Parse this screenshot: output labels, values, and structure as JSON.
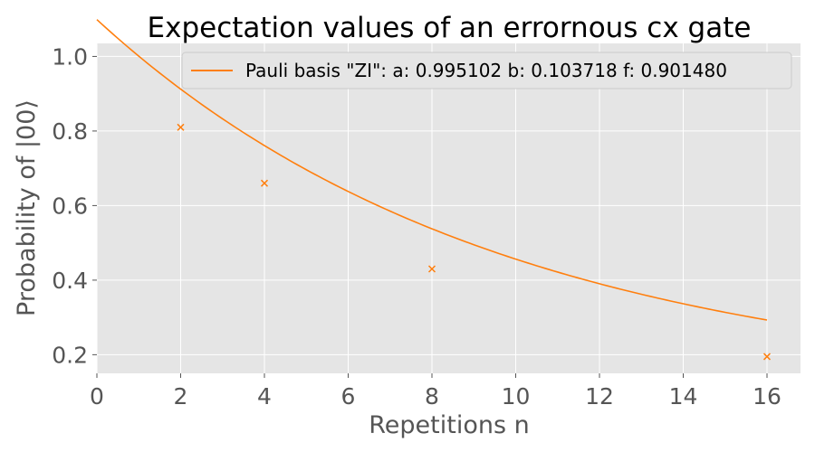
{
  "chart_data": {
    "type": "line",
    "title": "Expectation values of an errornous cx gate",
    "xlabel": "Repetitions n",
    "ylabel": "Probability of |00⟩",
    "xlim": [
      0,
      16.8
    ],
    "ylim": [
      0.15,
      1.035
    ],
    "xticks": [
      0,
      2,
      4,
      6,
      8,
      10,
      12,
      14,
      16
    ],
    "xtick_labels": [
      "0",
      "2",
      "4",
      "6",
      "8",
      "10",
      "12",
      "14",
      "16"
    ],
    "yticks": [
      0.2,
      0.4,
      0.6,
      0.8,
      1.0
    ],
    "ytick_labels": [
      "0.2",
      "0.4",
      "0.6",
      "0.8",
      "1.0"
    ],
    "grid": true,
    "legend_position": "top-right",
    "series": [
      {
        "name": "Pauli basis \"ZI\": a: 0.995102 b: 0.103718 f: 0.901480",
        "color": "#ff7f0e",
        "fit": {
          "model": "a*f^n + b",
          "a": 0.995102,
          "b": 0.103718,
          "f": 0.90148,
          "n_range": [
            0,
            16
          ]
        },
        "points": [
          {
            "x": 2,
            "y": 0.81
          },
          {
            "x": 4,
            "y": 0.66
          },
          {
            "x": 8,
            "y": 0.43
          },
          {
            "x": 16,
            "y": 0.195
          }
        ]
      }
    ]
  }
}
